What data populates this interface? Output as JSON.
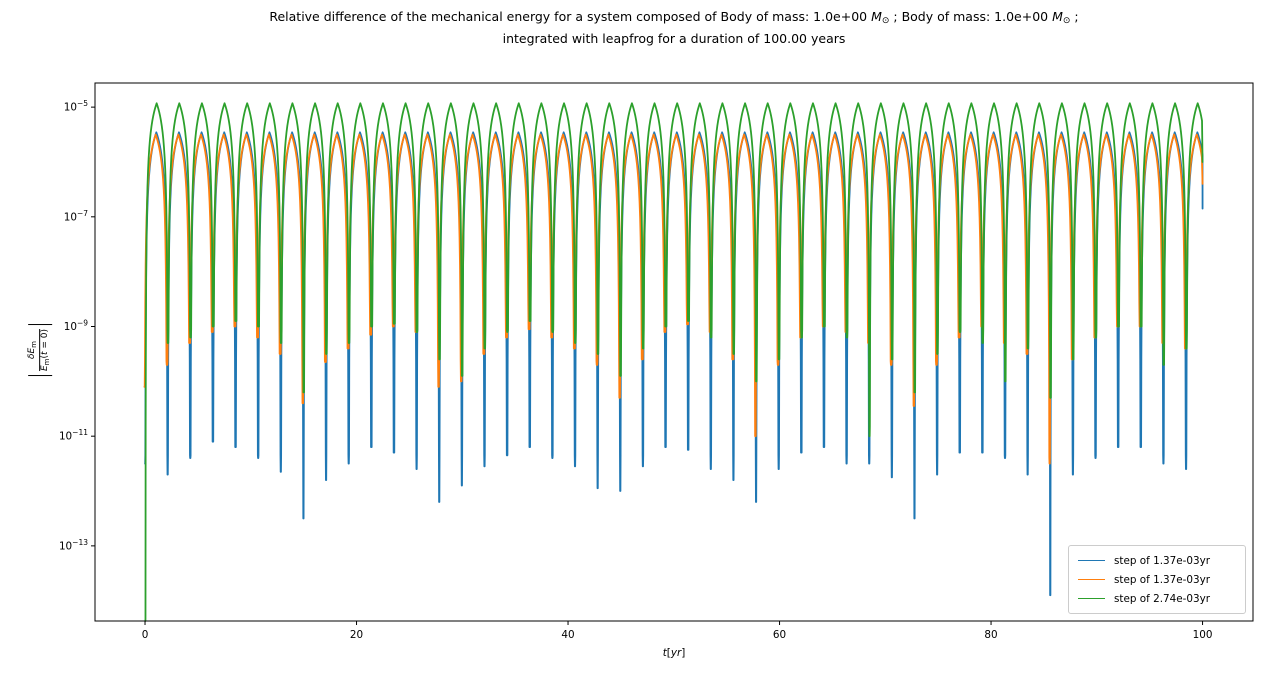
{
  "title": {
    "line1_plain": "Relative difference of the mechanical energy for a system composed of Body of mass: 1.0e+00 M⊙ ; Body of mass: 1.0e+00 M⊙ ;",
    "line1_parts": [
      {
        "t": "Relative difference of the mechanical energy for a system composed of Body of mass: 1.0e+00 "
      },
      {
        "t": "M",
        "it": true
      },
      {
        "t": "⊙",
        "sub": true
      },
      {
        "t": " ; Body of mass: 1.0e+00 "
      },
      {
        "t": "M",
        "it": true
      },
      {
        "t": "⊙",
        "sub": true
      },
      {
        "t": " ;"
      }
    ],
    "line2": "integrated with leapfrog for a duration of 100.00 years"
  },
  "chart_data": {
    "type": "line",
    "y_scale": "log",
    "x_scale": "linear",
    "grid": false,
    "legend_position": "lower right",
    "xlabel_plain": "t[yr]",
    "xlabel_parts": [
      {
        "t": "t",
        "it": true
      },
      {
        "t": "["
      },
      {
        "t": "yr",
        "it": true
      },
      {
        "t": "]"
      }
    ],
    "ylabel_plain": "|δE_m / E_m(t = 0)|",
    "ylabel_num_parts": [
      {
        "t": "δE",
        "it": true
      },
      {
        "t": "m",
        "sub": true
      }
    ],
    "ylabel_den_parts": [
      {
        "t": "E",
        "it": true
      },
      {
        "t": "m",
        "sub": true
      },
      {
        "t": "("
      },
      {
        "t": "t",
        "it": true
      },
      {
        "t": " = 0)"
      }
    ],
    "x_ticks": [
      0,
      20,
      40,
      60,
      80,
      100
    ],
    "y_tick_exponents": [
      -5,
      -7,
      -9,
      -11,
      -13
    ],
    "xlim": [
      -4.73,
      104.77
    ],
    "ylog_lim": [
      -14.37,
      -4.56
    ],
    "t_start": 0,
    "t_end": 100,
    "period_yr": 2.14,
    "arch": {
      "a": 0.83,
      "p": 0.5
    },
    "series_note": "Each series oscillates with the 2.14 yr orbital period: arches of constant peak height with narrow downward spikes at the nodes; dips_log lists log10 of the spike minima at t = k*period, k = 0..46; end_log is the value where the curve is cut at t = 100 yr.",
    "series": [
      {
        "name": "step of 1.37e-03yr",
        "color": "#1f77b4",
        "peak_log": -5.46,
        "phase_yr": 0.0,
        "end_log": -6.85,
        "dips_log": [
          -11.5,
          -11.7,
          -11.4,
          -11.1,
          -11.2,
          -11.4,
          -11.65,
          -12.5,
          -11.8,
          -11.5,
          -11.2,
          -11.3,
          -11.6,
          -12.2,
          -11.9,
          -11.55,
          -11.35,
          -11.2,
          -11.4,
          -11.55,
          -11.95,
          -12.0,
          -11.55,
          -11.2,
          -11.25,
          -11.6,
          -11.8,
          -12.2,
          -11.6,
          -11.3,
          -11.2,
          -11.5,
          -11.5,
          -11.75,
          -12.5,
          -11.7,
          -11.3,
          -11.3,
          -11.4,
          -11.7,
          -13.9,
          -11.7,
          -11.4,
          -11.2,
          -11.2,
          -11.5,
          -11.6
        ]
      },
      {
        "name": "step of 1.37e-03yr",
        "color": "#ff7f0e",
        "peak_log": -5.5,
        "phase_yr": -0.06,
        "end_log": -6.4,
        "dips_log": [
          -10.1,
          -9.7,
          -9.3,
          -9.1,
          -9.0,
          -9.2,
          -9.5,
          -10.4,
          -9.65,
          -9.4,
          -9.15,
          -9.0,
          -9.1,
          -10.1,
          -10.0,
          -9.5,
          -9.2,
          -9.05,
          -9.2,
          -9.4,
          -9.7,
          -10.3,
          -9.6,
          -9.1,
          -8.96,
          -9.1,
          -9.6,
          -11.0,
          -9.7,
          -9.2,
          -9.0,
          -9.1,
          -9.3,
          -9.7,
          -10.45,
          -9.7,
          -9.2,
          -9.0,
          -9.3,
          -9.5,
          -11.5,
          -9.6,
          -9.2,
          -9.0,
          -9.0,
          -9.3,
          -9.4
        ]
      },
      {
        "name": "step of 2.74e-03yr",
        "color": "#2ca02c",
        "peak_log": -4.93,
        "phase_yr": 0.03,
        "end_log": -6.0,
        "dips_log": [
          -14.37,
          -9.3,
          -9.2,
          -9.0,
          -8.9,
          -9.0,
          -9.3,
          -10.2,
          -9.5,
          -9.3,
          -9.0,
          -8.95,
          -9.1,
          -9.6,
          -9.9,
          -9.4,
          -9.1,
          -8.9,
          -9.1,
          -9.3,
          -9.5,
          -9.9,
          -9.4,
          -9.0,
          -8.9,
          -9.2,
          -9.5,
          -10.0,
          -9.6,
          -9.2,
          -9.0,
          -9.2,
          -11.0,
          -9.6,
          -10.2,
          -9.5,
          -9.1,
          -9.3,
          -10.0,
          -9.4,
          -10.3,
          -9.6,
          -9.2,
          -9.0,
          -9.0,
          -9.7,
          -9.4
        ]
      }
    ]
  },
  "colors": {
    "frame": "#000000",
    "tick_label": "#000000",
    "legend_border": "#cccccc",
    "background": "#ffffff"
  }
}
